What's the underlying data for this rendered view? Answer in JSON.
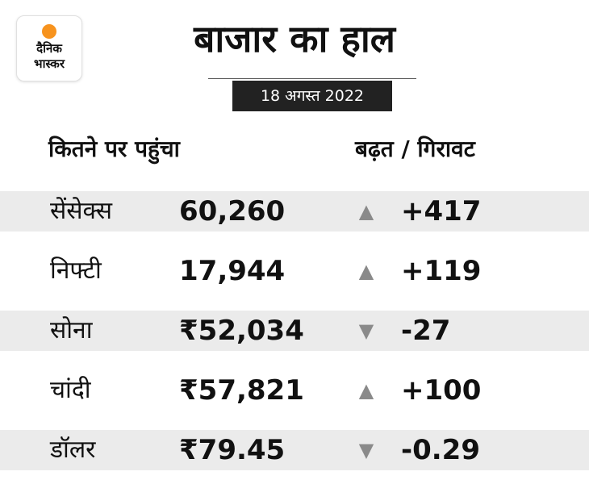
{
  "logo": {
    "line1": "दैनिक",
    "line2": "भास्कर",
    "accent": "#f7931e"
  },
  "title": "बाजार का हाल",
  "date": "18 अगस्त 2022",
  "headers": {
    "left": "कितने पर पहुंचा",
    "right": "बढ़त / गिरावट"
  },
  "rows": [
    {
      "name": "सेंसेक्स",
      "value": "60,260",
      "direction": "up",
      "arrow": "▲",
      "change": "+417"
    },
    {
      "name": "निफ्टी",
      "value": "17,944",
      "direction": "up",
      "arrow": "▲",
      "change": "+119"
    },
    {
      "name": "सोना",
      "value": "₹52,034",
      "direction": "down",
      "arrow": "▼",
      "change": "-27"
    },
    {
      "name": "चांदी",
      "value": "₹57,821",
      "direction": "up",
      "arrow": "▲",
      "change": "+100"
    },
    {
      "name": "डॉलर",
      "value": "₹79.45",
      "direction": "down",
      "arrow": "▼",
      "change": "-0.29"
    }
  ],
  "colors": {
    "row_shade": "#ebebeb",
    "arrow": "#8a8a8a",
    "date_bg": "#222222"
  }
}
